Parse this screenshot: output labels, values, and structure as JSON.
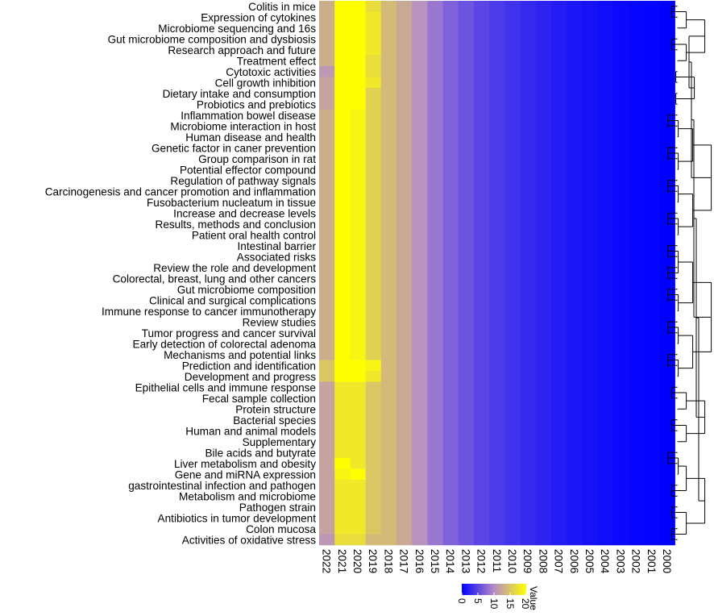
{
  "chart_data": {
    "type": "heatmap",
    "title": "",
    "rows": [
      "Colitis in mice",
      "Expression of cytokines",
      "Microbiome sequencing and 16s",
      "Gut microbiome composition and dysbiosis",
      "Research approach and future",
      "Treatment effect",
      "Cytotoxic activities",
      "Cell growth inhibition",
      "Dietary intake and consumption",
      "Probiotics and prebiotics",
      "Inflammation bowel disease",
      "Microbiome interaction in host",
      "Human disease and health",
      "Genetic factor in caner prevention",
      "Group comparison in rat",
      "Potential effector compound",
      "Regulation of pathway signals",
      "Carcinogenesis and cancer promotion and inflammation",
      "Fusobacterium nucleatum in tissue",
      "Increase and decrease levels",
      "Results, methods and conclusion",
      "Patient oral health control",
      "Intestinal barrier",
      "Associated risks",
      "Review the role and development",
      "Colorectal, breast, lung and other cancers",
      "Gut microbiome composition ",
      "Clinical and surgical complications ",
      "Immune response to cancer immunotherapy",
      "Review studies",
      "Tumor progress and cancer survival",
      "Early detection of colorectal adenoma",
      "Mechanisms and potential links",
      "Prediction and identification",
      "Development and progress",
      "Epithelial cells and immune response",
      "Fecal sample collection",
      "Protein structure",
      "Bacterial species",
      "Human and animal models",
      "Supplementary",
      "Bile acids and butyrate",
      "Liver metabolism and obesity",
      "Gene and miRNA expression",
      "gastrointestinal infection and pathogen",
      "Metabolism and microbiome",
      "Pathogen strain",
      "Antibiotics in tumor development",
      "Colon mucosa",
      "Activities of oxidative stress"
    ],
    "columns": [
      "2022",
      "2021",
      "2020",
      "2019",
      "2018",
      "2017",
      "2016",
      "2015",
      "2014",
      "2013",
      "2012",
      "2011",
      "2010",
      "2009",
      "2008",
      "2007",
      "2006",
      "2005",
      "2004",
      "2003",
      "2002",
      "2001",
      "2000"
    ],
    "col_profile": [
      13,
      20,
      19,
      16,
      14,
      12.5,
      10.5,
      8.5,
      7,
      6,
      5,
      4.2,
      3.6,
      3,
      2.5,
      2,
      1.6,
      1.2,
      0.9,
      0.6,
      0.4,
      0.2,
      0
    ],
    "row_adjust": [
      [
        0,
        2,
        1,
        1
      ],
      [
        0,
        4,
        3,
        2
      ],
      [
        0,
        4,
        3,
        2
      ],
      [
        0,
        4,
        3,
        2
      ],
      [
        0,
        3,
        2,
        2
      ],
      [
        0,
        2,
        2,
        1
      ],
      [
        -2,
        2,
        2,
        1
      ],
      [
        -1,
        3,
        3,
        2
      ],
      [
        -1,
        2,
        1,
        0
      ],
      [
        -1,
        2,
        1,
        0
      ],
      [
        0,
        1,
        0,
        0
      ],
      [
        0,
        1,
        0,
        0
      ],
      [
        0,
        1,
        0,
        0
      ],
      [
        0,
        1,
        0,
        0
      ],
      [
        0,
        1,
        0,
        0
      ],
      [
        0,
        1,
        0,
        0
      ],
      [
        0,
        1,
        0,
        0
      ],
      [
        0,
        1,
        0,
        0
      ],
      [
        0,
        1,
        0,
        0
      ],
      [
        0,
        1,
        0,
        0
      ],
      [
        0,
        1,
        0,
        0
      ],
      [
        0,
        1,
        0,
        0
      ],
      [
        0,
        1,
        0,
        0
      ],
      [
        0,
        1,
        0,
        0
      ],
      [
        0,
        1,
        0,
        0
      ],
      [
        0,
        1,
        0,
        0
      ],
      [
        0,
        1,
        0,
        0
      ],
      [
        0,
        1,
        0,
        0
      ],
      [
        0,
        1,
        0,
        0
      ],
      [
        0,
        1,
        0,
        0
      ],
      [
        0,
        1,
        0,
        0
      ],
      [
        0,
        1,
        0,
        0
      ],
      [
        0,
        1,
        0,
        0
      ],
      [
        2,
        2,
        2,
        3
      ],
      [
        2,
        2,
        2,
        2
      ],
      [
        -1,
        -2,
        -1,
        -1
      ],
      [
        -1,
        -2,
        -1,
        -1
      ],
      [
        -1,
        -2,
        -1,
        -1
      ],
      [
        -1,
        -2,
        -1,
        -1
      ],
      [
        -1,
        -2,
        -1,
        -1
      ],
      [
        -1,
        -2,
        -1,
        -1
      ],
      [
        -1,
        -2,
        -1,
        -1
      ],
      [
        -1,
        0,
        -1,
        -1
      ],
      [
        -1,
        -1,
        1,
        -1
      ],
      [
        -1,
        -2,
        -1,
        -1
      ],
      [
        -1,
        -2,
        -1,
        -1
      ],
      [
        -1,
        -2,
        -1,
        -1
      ],
      [
        -1,
        -2,
        -1,
        -1
      ],
      [
        -1,
        -2,
        -1,
        -1
      ],
      [
        -2,
        -3,
        -2,
        -2
      ]
    ],
    "value_range": [
      0,
      20
    ],
    "colorscale": [
      "#0000ff",
      "#b58cc8",
      "#ffff00"
    ],
    "legend": {
      "title": "Value",
      "ticks": [
        "0",
        "5",
        "10",
        "15",
        "20"
      ]
    },
    "dendrogram_side": "right"
  }
}
